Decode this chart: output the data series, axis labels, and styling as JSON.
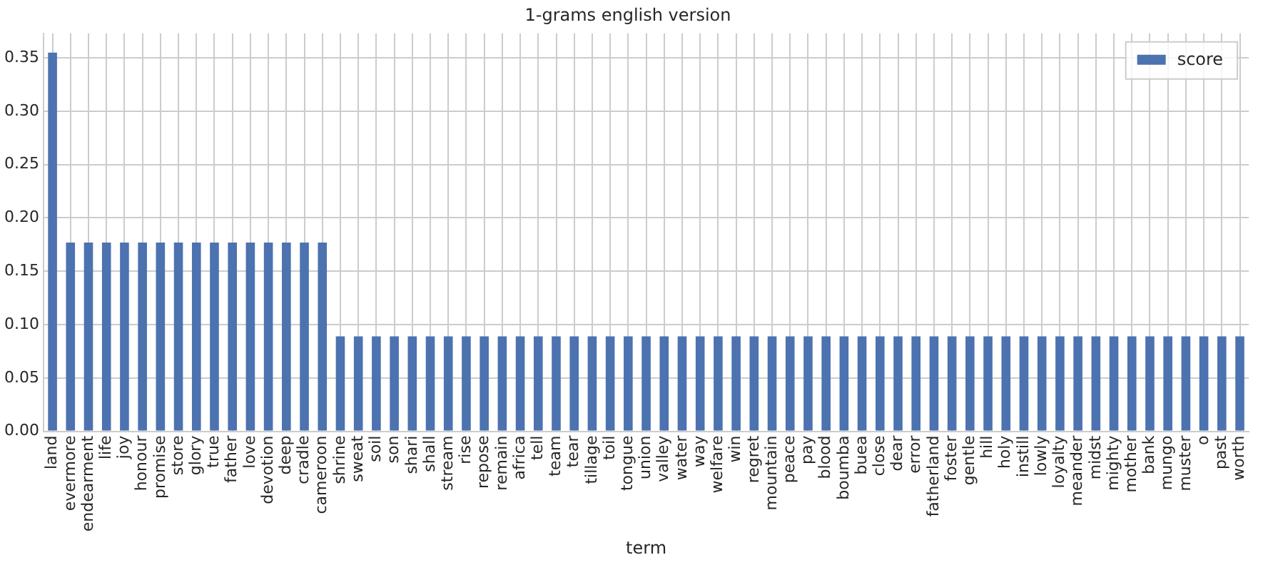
{
  "chart_data": {
    "type": "bar",
    "title": "1-grams english version",
    "xlabel": "term",
    "categories": [
      "land",
      "evermore",
      "endearment",
      "life",
      "joy",
      "honour",
      "promise",
      "store",
      "glory",
      "true",
      "father",
      "love",
      "devotion",
      "deep",
      "cradle",
      "cameroon",
      "shrine",
      "sweat",
      "soil",
      "son",
      "shari",
      "shall",
      "stream",
      "rise",
      "repose",
      "remain",
      "africa",
      "tell",
      "team",
      "tear",
      "tillage",
      "toil",
      "tongue",
      "union",
      "valley",
      "water",
      "way",
      "welfare",
      "win",
      "regret",
      "mountain",
      "peace",
      "pay",
      "blood",
      "boumba",
      "buea",
      "close",
      "dear",
      "error",
      "fatherland",
      "foster",
      "gentle",
      "hill",
      "holy",
      "instill",
      "lowly",
      "loyalty",
      "meander",
      "midst",
      "mighty",
      "mother",
      "bank",
      "mungo",
      "muster",
      "o",
      "past",
      "worth"
    ],
    "series": [
      {
        "name": "score",
        "color": "#4c72b0",
        "values": [
          0.355,
          0.177,
          0.177,
          0.177,
          0.177,
          0.177,
          0.177,
          0.177,
          0.177,
          0.177,
          0.177,
          0.177,
          0.177,
          0.177,
          0.177,
          0.177,
          0.089,
          0.089,
          0.089,
          0.089,
          0.089,
          0.089,
          0.089,
          0.089,
          0.089,
          0.089,
          0.089,
          0.089,
          0.089,
          0.089,
          0.089,
          0.089,
          0.089,
          0.089,
          0.089,
          0.089,
          0.089,
          0.089,
          0.089,
          0.089,
          0.089,
          0.089,
          0.089,
          0.089,
          0.089,
          0.089,
          0.089,
          0.089,
          0.089,
          0.089,
          0.089,
          0.089,
          0.089,
          0.089,
          0.089,
          0.089,
          0.089,
          0.089,
          0.089,
          0.089,
          0.089,
          0.089,
          0.089,
          0.089,
          0.089,
          0.089,
          0.089
        ]
      }
    ],
    "ylim": [
      0,
      0.373
    ],
    "yticks": [
      {
        "value": 0,
        "label": "0.00"
      },
      0.05,
      {
        "value": 0.1,
        "label": "0.10"
      },
      0.15,
      {
        "value": 0.2,
        "label": "0.20"
      },
      0.25,
      {
        "value": 0.3,
        "label": "0.30"
      },
      0.35
    ],
    "grid": true,
    "legend": "top right"
  }
}
